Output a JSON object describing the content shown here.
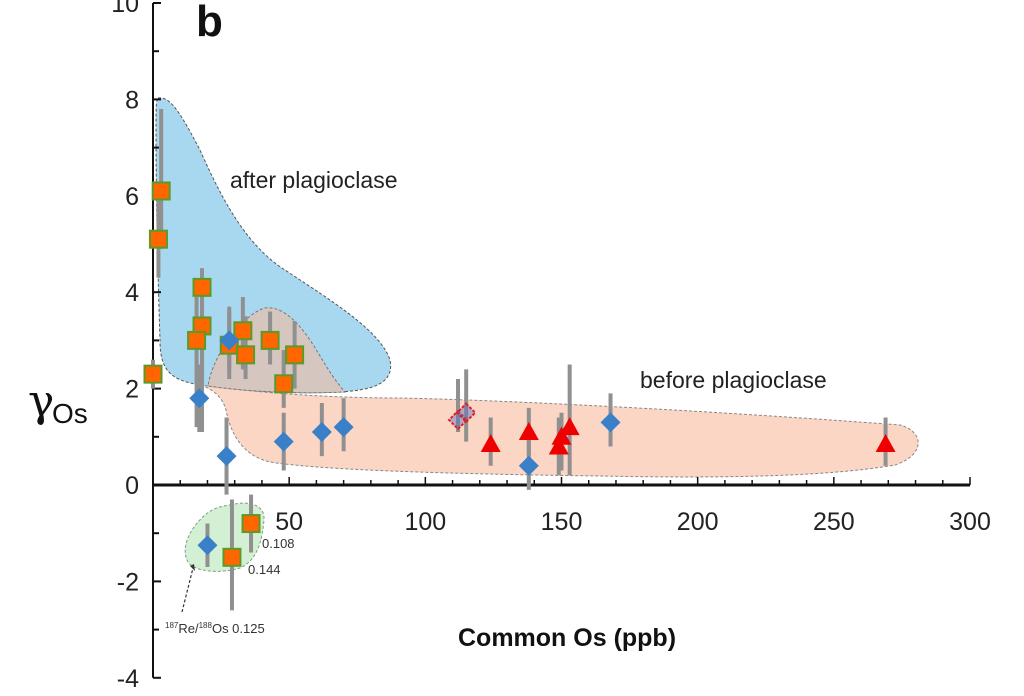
{
  "chart_data": {
    "type": "scatter",
    "panel_label": "b",
    "title": "",
    "xlabel": "Common Os (ppb)",
    "ylabel_symbol": "γ",
    "ylabel_subscript": "Os",
    "xlim": [
      0,
      300
    ],
    "ylim": [
      -4,
      10
    ],
    "x_ticks": [
      50,
      100,
      150,
      200,
      250,
      300
    ],
    "x_tick_labels": [
      "50",
      "100",
      "150",
      "200",
      "250",
      "300"
    ],
    "x_minor_step": 10,
    "y_ticks": [
      -4,
      -2,
      0,
      2,
      4,
      6,
      8,
      10
    ],
    "y_tick_labels": [
      "-4",
      "-2",
      "0",
      "2",
      "4",
      "6",
      "8",
      "10"
    ],
    "y_minor_step": 1,
    "grid": false,
    "colors": {
      "square_fill": "#ff6600",
      "square_edge": "#5a9a2a",
      "diamond": "#3a80c8",
      "triangle": "#ee0000",
      "hollow_diamond": "#dd2222",
      "errorbar": "#909090",
      "region_after": "#a8d8ef",
      "region_before": "#fcd6c4",
      "region_overlap": "#d6c6c0",
      "region_low": "#d4f0d4"
    },
    "regions": [
      {
        "name": "after plagioclase",
        "label": "after plagioclase"
      },
      {
        "name": "before plagioclase",
        "label": "before plagioclase"
      },
      {
        "name": "overlap",
        "label": ""
      },
      {
        "name": "low-re-os",
        "label": ""
      }
    ],
    "series": [
      {
        "name": "orange squares",
        "marker": "square",
        "points": [
          {
            "x": 3,
            "y": 6.1,
            "err": [
              4.9,
              7.8
            ]
          },
          {
            "x": 2,
            "y": 5.1,
            "err": [
              4.3,
              5.9
            ]
          },
          {
            "x": 18,
            "y": 4.1,
            "err": [
              1.1,
              4.5
            ]
          },
          {
            "x": 18,
            "y": 3.3,
            "err": [
              1.5,
              4.3
            ]
          },
          {
            "x": 16,
            "y": 3.0,
            "err": [
              1.2,
              3.9
            ]
          },
          {
            "x": 0,
            "y": 2.3,
            "err": [
              2.0,
              2.6
            ]
          },
          {
            "x": 28,
            "y": 2.9,
            "err": [
              2.2,
              3.6
            ]
          },
          {
            "x": 33,
            "y": 3.2,
            "err": [
              2.4,
              3.9
            ]
          },
          {
            "x": 34,
            "y": 2.7,
            "err": [
              2.2,
              3.5
            ]
          },
          {
            "x": 43,
            "y": 3.0,
            "err": [
              2.5,
              3.6
            ]
          },
          {
            "x": 52,
            "y": 2.7,
            "err": [
              2.0,
              3.4
            ]
          },
          {
            "x": 48,
            "y": 2.1,
            "err": [
              1.6,
              2.8
            ]
          },
          {
            "x": 36,
            "y": -0.8,
            "err": [
              -1.4,
              -0.2
            ]
          },
          {
            "x": 29,
            "y": -1.5,
            "err": [
              -2.6,
              -0.3
            ]
          }
        ]
      },
      {
        "name": "blue diamonds",
        "marker": "diamond",
        "points": [
          {
            "x": 17,
            "y": 1.8,
            "err": [
              1.1,
              2.5
            ]
          },
          {
            "x": 28,
            "y": 3.0,
            "err": [
              2.4,
              3.7
            ]
          },
          {
            "x": 27,
            "y": 0.6,
            "err": [
              -0.2,
              1.4
            ]
          },
          {
            "x": 48,
            "y": 0.9,
            "err": [
              0.3,
              1.5
            ]
          },
          {
            "x": 62,
            "y": 1.1,
            "err": [
              0.6,
              1.7
            ]
          },
          {
            "x": 70,
            "y": 1.2,
            "err": [
              0.7,
              1.8
            ]
          },
          {
            "x": 138,
            "y": 0.4,
            "err": [
              -0.1,
              1.1
            ]
          },
          {
            "x": 168,
            "y": 1.3,
            "err": [
              0.8,
              1.9
            ]
          },
          {
            "x": 20,
            "y": -1.25,
            "err": [
              -1.7,
              -0.8
            ]
          }
        ]
      },
      {
        "name": "red triangles",
        "marker": "triangle",
        "points": [
          {
            "x": 124,
            "y": 0.85,
            "err": [
              0.4,
              1.4
            ]
          },
          {
            "x": 138,
            "y": 1.1,
            "err": [
              0.6,
              1.6
            ]
          },
          {
            "x": 149,
            "y": 0.8,
            "err": [
              0.2,
              1.4
            ]
          },
          {
            "x": 150,
            "y": 1.0,
            "err": [
              0.3,
              1.5
            ]
          },
          {
            "x": 153,
            "y": 1.2,
            "err": [
              0.2,
              2.5
            ]
          },
          {
            "x": 269,
            "y": 0.85,
            "err": [
              0.4,
              1.4
            ]
          }
        ]
      },
      {
        "name": "hollow diamonds",
        "marker": "hollow-diamond",
        "points": [
          {
            "x": 112,
            "y": 1.35,
            "err": [
              1.1,
              2.2
            ]
          },
          {
            "x": 115,
            "y": 1.5,
            "err": [
              0.9,
              2.4
            ]
          }
        ]
      }
    ],
    "annotations": [
      {
        "text": "0.108",
        "x": 38,
        "y": -1.25
      },
      {
        "text": "0.144",
        "x": 33,
        "y": -1.75
      },
      {
        "iso1": "187",
        "t1": "Re/",
        "iso2": "188",
        "t2": "Os 0.125",
        "x": 3,
        "y": -2.95
      }
    ]
  }
}
